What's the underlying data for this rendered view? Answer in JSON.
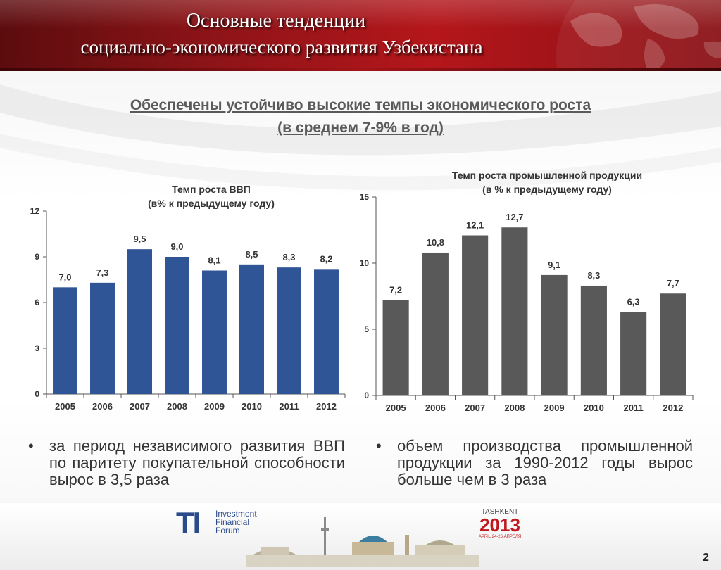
{
  "header": {
    "title_line1": "Основные тенденции",
    "title_line2": "социально-экономического развития Узбекистана",
    "colors": {
      "band": "#9e1519",
      "text": "#ffffff"
    }
  },
  "subtitle": {
    "line1": "Обеспечены устойчиво высокие темпы экономического роста",
    "line2": "(в среднем 7-9% в год)"
  },
  "chart_data": [
    {
      "type": "bar",
      "title_line1": "Темп роста ВВП",
      "title_line2": "(в% к предыдущему году)",
      "categories": [
        "2005",
        "2006",
        "2007",
        "2008",
        "2009",
        "2010",
        "2011",
        "2012"
      ],
      "values": [
        7.0,
        7.3,
        9.5,
        9.0,
        8.1,
        8.5,
        8.3,
        8.2
      ],
      "value_labels": [
        "7,0",
        "7,3",
        "9,5",
        "9,0",
        "8,1",
        "8,5",
        "8,3",
        "8,2"
      ],
      "yticks": [
        "0",
        "3",
        "6",
        "9",
        "12"
      ],
      "ylim": [
        0,
        12
      ],
      "color": "#2f5597",
      "grid": false
    },
    {
      "type": "bar",
      "title_line1": "Темп роста промышленной продукции",
      "title_line2": "(в % к предыдущему году)",
      "categories": [
        "2005",
        "2006",
        "2007",
        "2008",
        "2009",
        "2010",
        "2011",
        "2012"
      ],
      "values": [
        7.2,
        10.8,
        12.1,
        12.7,
        9.1,
        8.3,
        6.3,
        7.7
      ],
      "value_labels": [
        "7,2",
        "10,8",
        "12,1",
        "12,7",
        "9,1",
        "8,3",
        "6,3",
        "7,7"
      ],
      "yticks": [
        "0",
        "5",
        "10",
        "15"
      ],
      "ylim": [
        0,
        15
      ],
      "color": "#595959",
      "grid": false
    }
  ],
  "bullets": {
    "left": "за период независимого развития ВВП по паритету покупательной способности вырос в 3,5 раза",
    "right": "объем производства промышленной продукции за 1990-2012 годы вырос больше чем в 3 раза"
  },
  "footer": {
    "forum_abbr": "TI",
    "forum_line1": "Investment",
    "forum_line2": "Financial",
    "forum_line3": "Forum",
    "event_city": "TASHKENT",
    "event_year": "2013",
    "event_dates": "APRIL 24-26 АПРЕЛЯ",
    "page_number": "2"
  }
}
